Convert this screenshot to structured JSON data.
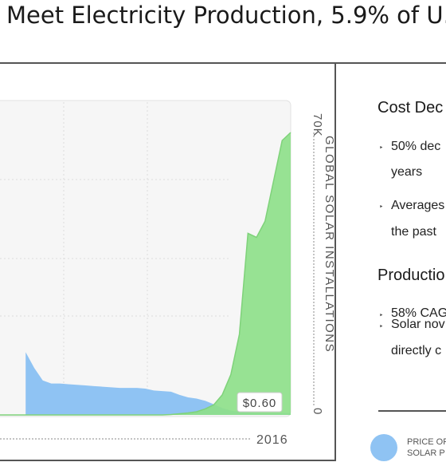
{
  "title": "Meet Electricity Production, 5.9% of U.",
  "colors": {
    "installations": "#8ee08a",
    "installations_stroke": "#7fd27a",
    "price": "#8fc3f3",
    "frame": "#555555",
    "plot_bg": "#f6f6f6"
  },
  "chart_data": {
    "type": "area",
    "x": [
      1,
      2,
      3,
      4,
      5,
      6,
      7,
      8,
      9,
      10,
      11,
      12,
      13,
      14,
      15,
      16,
      17,
      18,
      19,
      20,
      21,
      22,
      23,
      24,
      25,
      26,
      27,
      28,
      29,
      30,
      31,
      32,
      33,
      34,
      35
    ],
    "x_end_label": "2016",
    "xlim": [
      1,
      35
    ],
    "series": [
      {
        "key": "installations",
        "axis": "right",
        "values": [
          0,
          0,
          0,
          0,
          0,
          0,
          0,
          0,
          0,
          0,
          0,
          0,
          0,
          0,
          0,
          0,
          0,
          0,
          0,
          0,
          100,
          300,
          500,
          800,
          1500,
          2500,
          5000,
          10000,
          20000,
          45000,
          44000,
          48000,
          58000,
          68000,
          70000
        ]
      },
      {
        "key": "price",
        "axis": "left",
        "values": [
          null,
          null,
          null,
          20,
          15,
          11,
          10,
          10,
          9.8,
          9.6,
          9.4,
          9.2,
          9,
          8.8,
          8.6,
          8.6,
          8.6,
          8.4,
          7.8,
          7.6,
          7.4,
          6.4,
          5.6,
          5.2,
          4.5,
          3.4,
          2.2,
          1.4,
          1.0,
          0.8,
          0.7,
          0.65,
          0.62,
          0.6,
          0.6
        ]
      }
    ],
    "y_right": {
      "label": "GLOBAL SOLAR INSTALLATIONS",
      "ticks": [
        "70K",
        "0"
      ],
      "range": [
        0,
        70000
      ]
    },
    "y_left": {
      "range": [
        0,
        90
      ]
    },
    "price_label": "$0.60",
    "legend": [
      {
        "key": "price",
        "label_lines": [
          "PRICE OF",
          "SOLAR P"
        ]
      }
    ],
    "grid": true
  },
  "side": {
    "sections": [
      {
        "heading": "Cost Dec",
        "bullets": [
          {
            "lines": [
              "50% dec",
              "years"
            ]
          },
          {
            "lines": [
              "Averages",
              "the past"
            ]
          }
        ]
      },
      {
        "heading": "Productio",
        "bullets": [
          {
            "lines": [
              "58% CAG"
            ]
          },
          {
            "lines": [
              "Solar nov",
              "directly c"
            ]
          }
        ]
      }
    ],
    "bullet_glyph": "‣"
  }
}
